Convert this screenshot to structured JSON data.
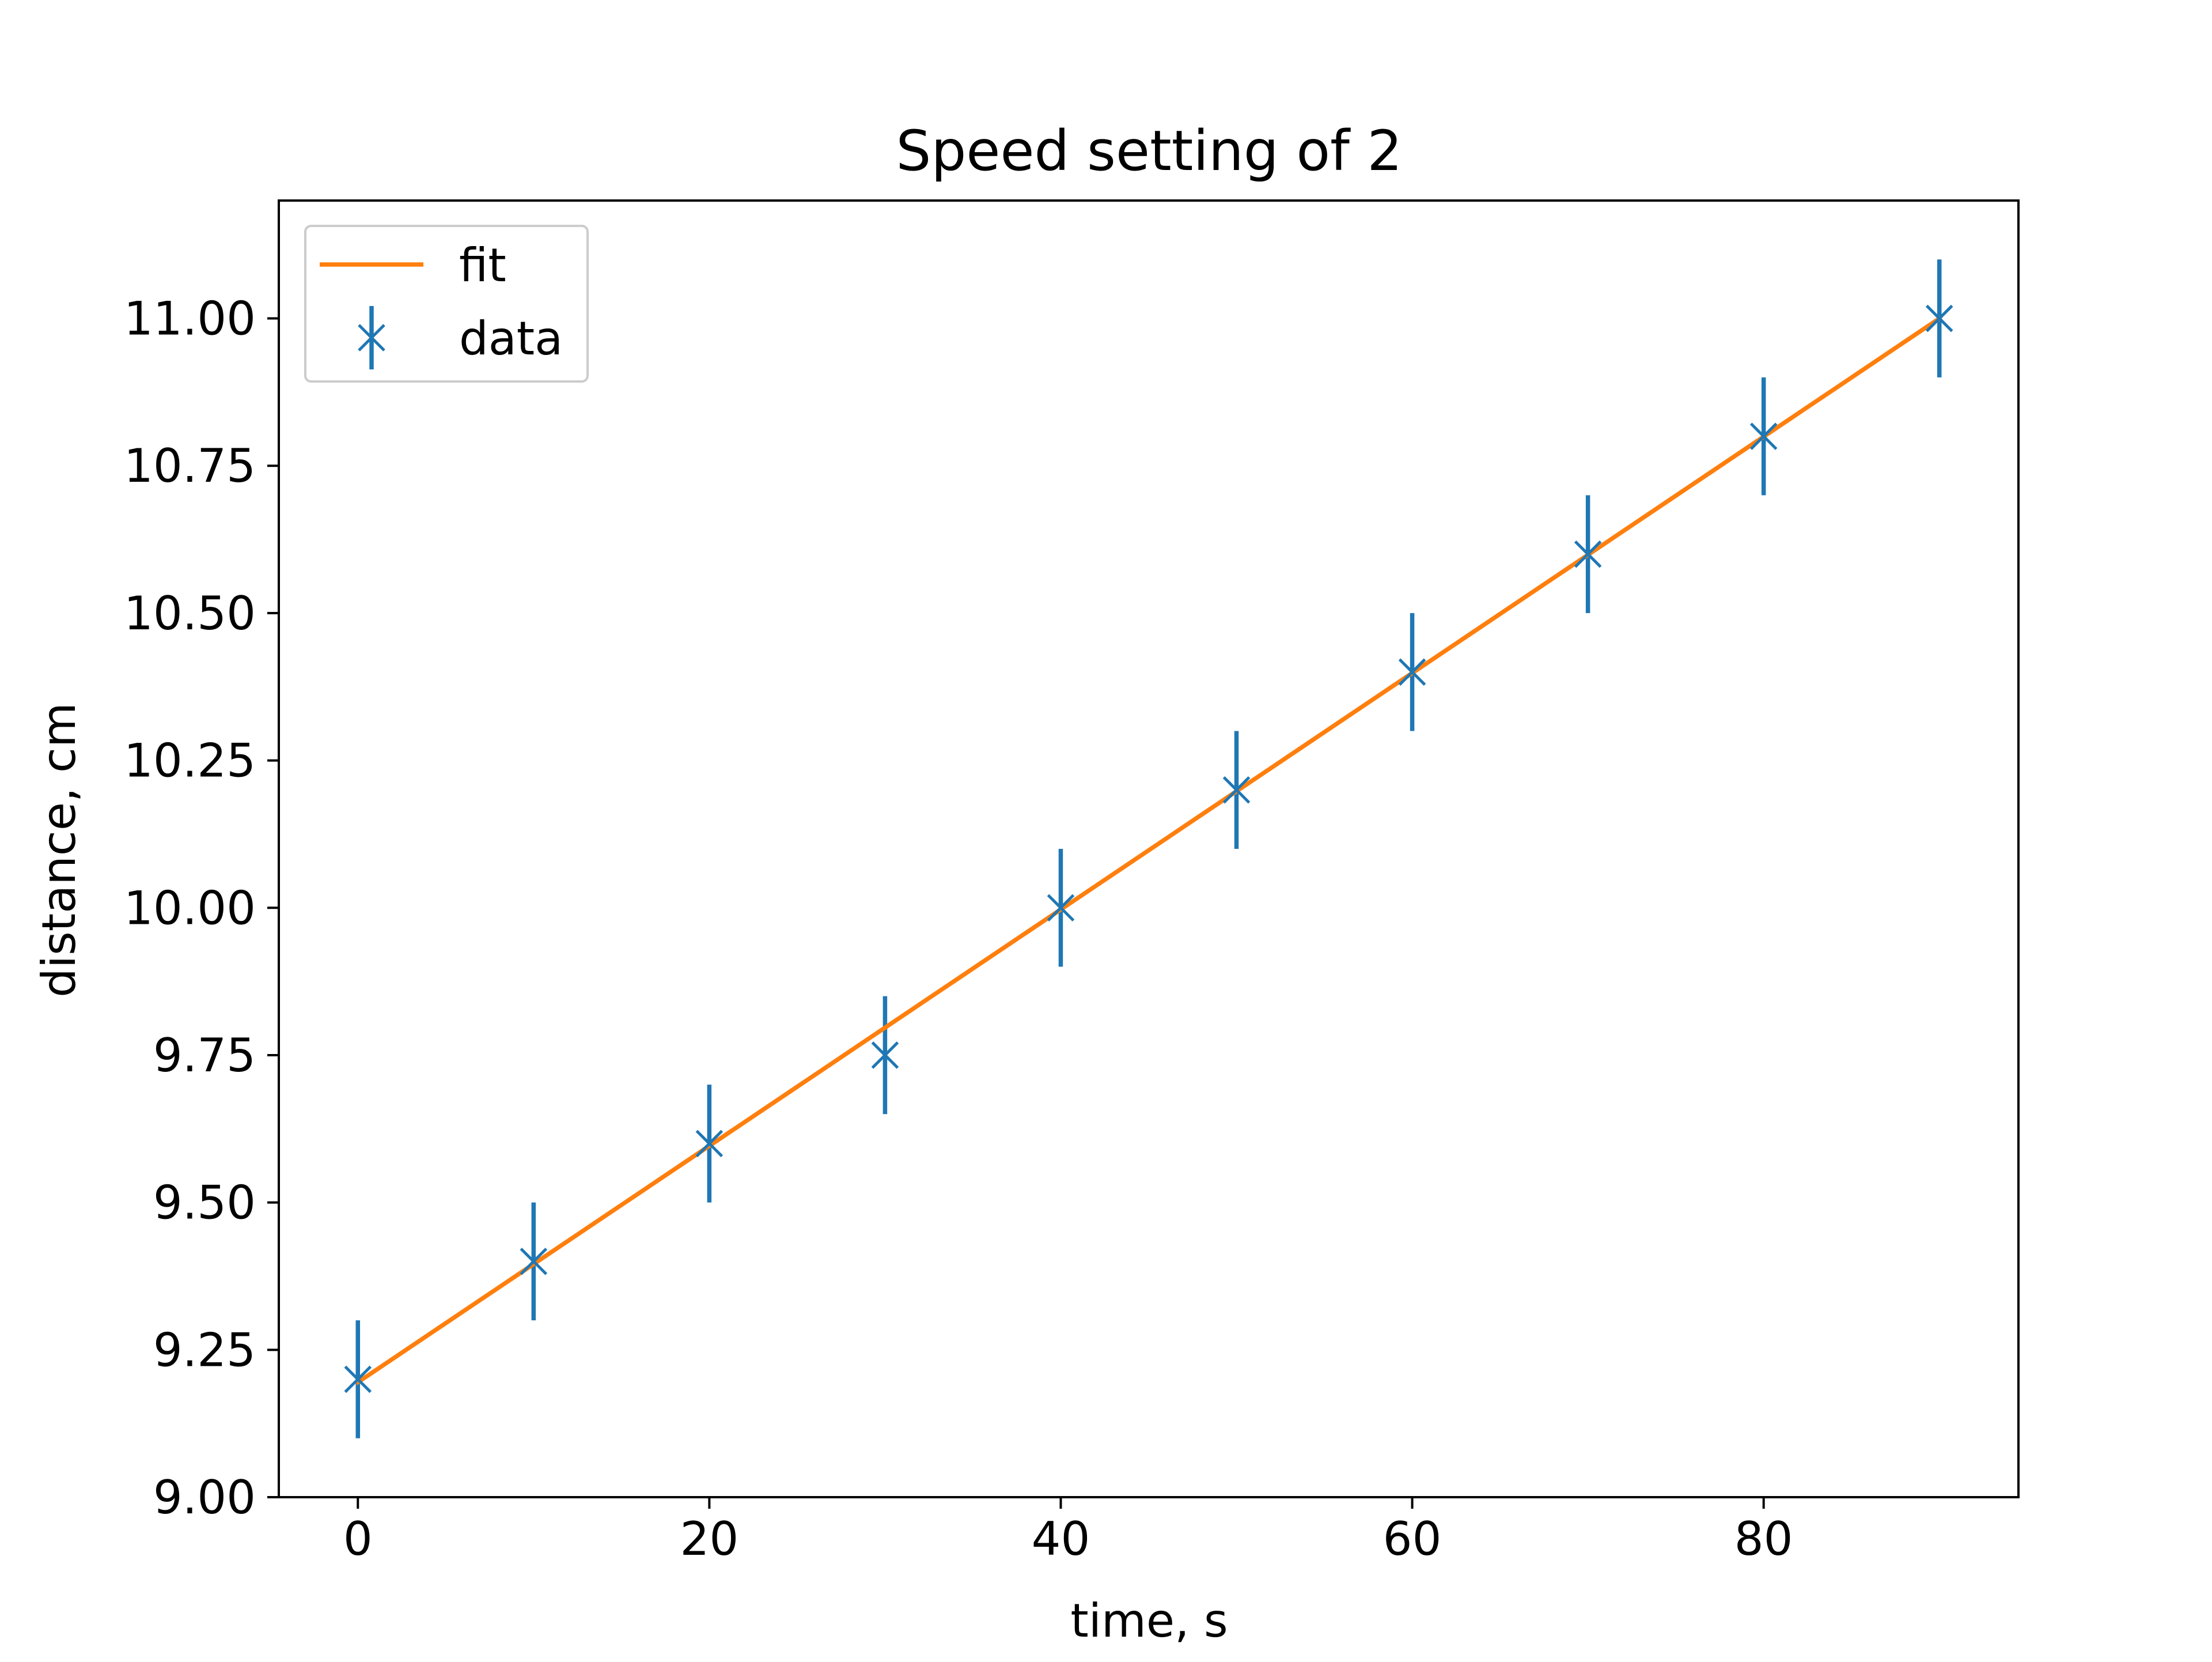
{
  "chart_data": {
    "type": "scatter",
    "title": "Speed setting of 2",
    "xlabel": "time, s",
    "ylabel": "distance, cm",
    "xlim": [
      -4.5,
      94.5
    ],
    "ylim": [
      9.0,
      11.2
    ],
    "xticks": [
      0,
      20,
      40,
      60,
      80
    ],
    "xtick_labels": [
      "0",
      "20",
      "40",
      "60",
      "80"
    ],
    "yticks": [
      9.0,
      9.25,
      9.5,
      9.75,
      10.0,
      10.25,
      10.5,
      10.75,
      11.0
    ],
    "ytick_labels": [
      "9.00",
      "9.25",
      "9.50",
      "9.75",
      "10.00",
      "10.25",
      "10.50",
      "10.75",
      "11.00"
    ],
    "grid": false,
    "legend": {
      "location": "upper left"
    },
    "series": [
      {
        "name": "fit",
        "kind": "line",
        "color": "#ff7f0e",
        "x": [
          0,
          90
        ],
        "y": [
          9.195,
          11.0
        ]
      },
      {
        "name": "data",
        "kind": "errorbar",
        "marker": "x",
        "color": "#1f77b4",
        "x": [
          0,
          10,
          20,
          30,
          40,
          50,
          60,
          70,
          80,
          90
        ],
        "y": [
          9.2,
          9.4,
          9.6,
          9.75,
          10.0,
          10.2,
          10.4,
          10.6,
          10.8,
          11.0
        ],
        "yerr": [
          0.1,
          0.1,
          0.1,
          0.1,
          0.1,
          0.1,
          0.1,
          0.1,
          0.1,
          0.1
        ]
      }
    ]
  }
}
